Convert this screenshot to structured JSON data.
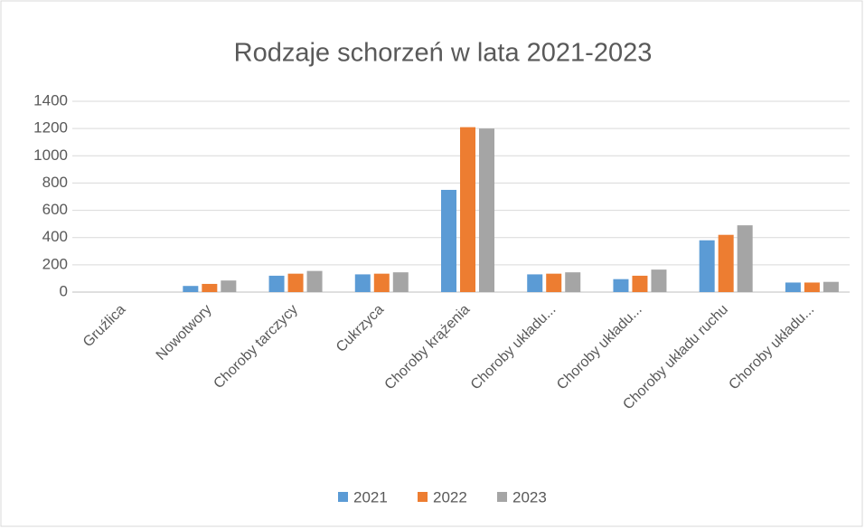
{
  "chart_data": {
    "type": "bar",
    "title": "Rodzaje schorzeń w lata 2021-2023",
    "categories": [
      "Gruźlica",
      "Nowotwory",
      "Choroby tarczycy",
      "Cukrzyca",
      "Choroby krążenia",
      "Choroby układu...",
      "Choroby układu...",
      "Choroby układu ruchu",
      "Choroby układu..."
    ],
    "series": [
      {
        "name": "2021",
        "color": "#5b9bd5",
        "values": [
          0,
          45,
          120,
          130,
          750,
          130,
          95,
          380,
          70
        ]
      },
      {
        "name": "2022",
        "color": "#ed7d31",
        "values": [
          0,
          60,
          135,
          135,
          1210,
          135,
          120,
          420,
          70
        ]
      },
      {
        "name": "2023",
        "color": "#a5a5a5",
        "values": [
          0,
          85,
          155,
          145,
          1200,
          145,
          165,
          490,
          75
        ]
      }
    ],
    "ylim": [
      0,
      1400
    ],
    "yticks": [
      0,
      200,
      400,
      600,
      800,
      1000,
      1200,
      1400
    ],
    "grid": true,
    "legend": "bottom"
  }
}
